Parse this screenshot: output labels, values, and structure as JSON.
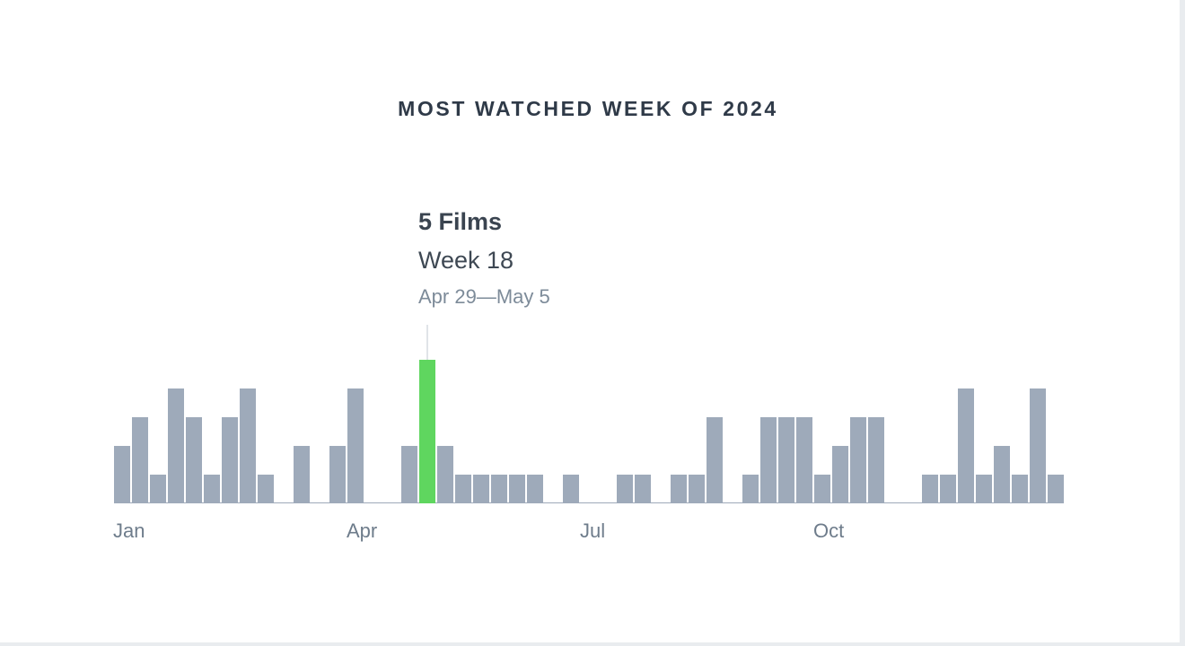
{
  "chart_data": {
    "type": "bar",
    "title": "MOST WATCHED WEEK OF 2024",
    "x_tick_labels": [
      {
        "label": "Jan",
        "week": 1
      },
      {
        "label": "Apr",
        "week": 14
      },
      {
        "label": "Jul",
        "week": 27
      },
      {
        "label": "Oct",
        "week": 40
      }
    ],
    "weeks": [
      1,
      2,
      3,
      4,
      5,
      6,
      7,
      8,
      9,
      10,
      11,
      12,
      13,
      14,
      15,
      16,
      17,
      18,
      19,
      20,
      21,
      22,
      23,
      24,
      25,
      26,
      27,
      28,
      29,
      30,
      31,
      32,
      33,
      34,
      35,
      36,
      37,
      38,
      39,
      40,
      41,
      42,
      43,
      44,
      45,
      46,
      47,
      48,
      49,
      50,
      51,
      52,
      53
    ],
    "values": [
      2,
      3,
      1,
      4,
      3,
      1,
      3,
      4,
      1,
      0,
      2,
      0,
      2,
      4,
      0,
      0,
      2,
      5,
      2,
      1,
      1,
      1,
      1,
      1,
      0,
      1,
      0,
      0,
      1,
      1,
      0,
      1,
      1,
      3,
      0,
      1,
      3,
      3,
      3,
      1,
      2,
      3,
      3,
      0,
      0,
      1,
      1,
      4,
      1,
      2,
      1,
      4,
      1
    ],
    "ylim": [
      0,
      5
    ],
    "highlight": {
      "week": 18,
      "count_label": "5 Films",
      "week_label": "Week 18",
      "range_label": "Apr 29—May 5"
    },
    "colors": {
      "bar": "#9eaaba",
      "highlight": "#5fd65f",
      "baseline": "#9eaaba",
      "tooltip_line": "#d5dae0"
    }
  }
}
